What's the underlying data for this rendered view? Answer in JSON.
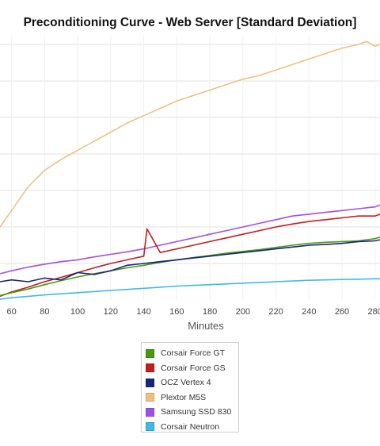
{
  "chart_data": {
    "type": "line",
    "title": "Preconditioning Curve - Web Server [Standard Deviation]",
    "xlabel": "Minutes",
    "ylabel": "",
    "x_ticks": [
      60,
      80,
      100,
      120,
      140,
      160,
      180,
      200,
      220,
      240,
      260,
      280
    ],
    "xlim": [
      53,
      283
    ],
    "ylim": [
      0,
      7
    ],
    "grid": true,
    "legend_position": "bottom",
    "series": [
      {
        "name": "Corsair Force GT",
        "color": "#4a9a0e",
        "x": [
          53,
          60,
          70,
          80,
          90,
          100,
          110,
          120,
          130,
          140,
          150,
          160,
          170,
          180,
          190,
          200,
          210,
          220,
          230,
          240,
          250,
          260,
          270,
          280,
          283
        ],
        "values": [
          0.12,
          0.2,
          0.3,
          0.42,
          0.53,
          0.63,
          0.72,
          0.8,
          0.88,
          0.95,
          1.03,
          1.1,
          1.16,
          1.22,
          1.28,
          1.33,
          1.38,
          1.44,
          1.5,
          1.55,
          1.58,
          1.6,
          1.62,
          1.68,
          1.72
        ]
      },
      {
        "name": "Corsair Force GS",
        "color": "#c41e1e",
        "x": [
          53,
          60,
          70,
          80,
          90,
          100,
          110,
          120,
          130,
          140,
          142,
          150,
          160,
          170,
          180,
          190,
          200,
          210,
          220,
          230,
          240,
          250,
          260,
          270,
          280,
          283
        ],
        "values": [
          0.1,
          0.22,
          0.35,
          0.5,
          0.62,
          0.75,
          0.88,
          1.0,
          1.1,
          1.2,
          1.95,
          1.3,
          1.4,
          1.5,
          1.6,
          1.7,
          1.8,
          1.9,
          2.0,
          2.08,
          2.15,
          2.2,
          2.25,
          2.3,
          2.3,
          2.35
        ]
      },
      {
        "name": "OCZ Vertex 4",
        "color": "#1a237e",
        "x": [
          53,
          60,
          70,
          80,
          90,
          100,
          110,
          120,
          130,
          140,
          150,
          160,
          170,
          180,
          190,
          200,
          210,
          220,
          230,
          240,
          250,
          260,
          270,
          280,
          283
        ],
        "values": [
          0.5,
          0.55,
          0.5,
          0.6,
          0.55,
          0.75,
          0.7,
          0.8,
          0.95,
          1.0,
          1.05,
          1.1,
          1.15,
          1.2,
          1.25,
          1.3,
          1.35,
          1.4,
          1.45,
          1.5,
          1.52,
          1.55,
          1.6,
          1.62,
          1.65
        ]
      },
      {
        "name": "Plextor M5S",
        "color": "#f0c080",
        "x": [
          53,
          60,
          70,
          80,
          90,
          100,
          110,
          120,
          130,
          140,
          150,
          160,
          170,
          180,
          190,
          200,
          210,
          220,
          230,
          240,
          250,
          260,
          270,
          275,
          280,
          283
        ],
        "values": [
          2.0,
          2.45,
          3.1,
          3.55,
          3.85,
          4.1,
          4.35,
          4.6,
          4.85,
          5.05,
          5.25,
          5.45,
          5.6,
          5.75,
          5.9,
          6.05,
          6.15,
          6.3,
          6.45,
          6.6,
          6.75,
          6.9,
          7.0,
          7.08,
          6.95,
          7.0
        ]
      },
      {
        "name": "Samsung SSD 830",
        "color": "#a050e8",
        "x": [
          53,
          60,
          70,
          80,
          90,
          100,
          110,
          120,
          130,
          140,
          150,
          160,
          170,
          180,
          190,
          200,
          210,
          220,
          230,
          240,
          250,
          260,
          270,
          280,
          283
        ],
        "values": [
          0.72,
          0.8,
          0.9,
          0.98,
          1.05,
          1.1,
          1.18,
          1.25,
          1.32,
          1.4,
          1.5,
          1.6,
          1.7,
          1.8,
          1.9,
          2.0,
          2.1,
          2.2,
          2.3,
          2.35,
          2.4,
          2.45,
          2.5,
          2.55,
          2.6
        ]
      },
      {
        "name": "Corsair Neutron",
        "color": "#40b8ec",
        "x": [
          53,
          60,
          70,
          80,
          90,
          100,
          110,
          120,
          130,
          140,
          150,
          160,
          170,
          180,
          190,
          200,
          210,
          220,
          230,
          240,
          250,
          260,
          270,
          280,
          283
        ],
        "values": [
          0.02,
          0.06,
          0.1,
          0.14,
          0.17,
          0.2,
          0.23,
          0.26,
          0.29,
          0.32,
          0.35,
          0.38,
          0.4,
          0.42,
          0.44,
          0.46,
          0.48,
          0.5,
          0.52,
          0.54,
          0.55,
          0.56,
          0.57,
          0.58,
          0.58
        ]
      }
    ]
  }
}
